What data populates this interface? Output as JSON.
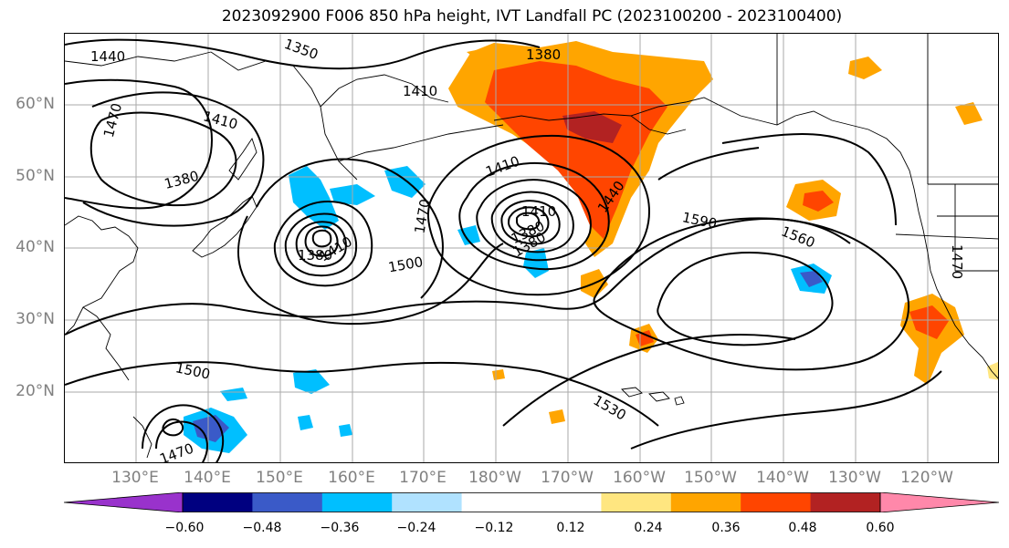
{
  "title": "2023092900 F006 850 hPa height, IVT Landfall PC (2023100200 - 2023100400)",
  "map": {
    "projection": "PlateCarree",
    "lon_range_east": [
      120,
      250
    ],
    "lat_range": [
      10,
      70
    ],
    "lat_labels": [
      "60°N",
      "50°N",
      "40°N",
      "30°N",
      "20°N"
    ],
    "lon_labels": [
      "130°E",
      "140°E",
      "150°E",
      "160°E",
      "170°E",
      "180°W",
      "170°W",
      "160°W",
      "150°W",
      "140°W",
      "130°W",
      "120°W"
    ],
    "contour_labels": [
      "1440",
      "1350",
      "1380",
      "1410",
      "1470",
      "1410",
      "1380",
      "1410",
      "1380",
      "1410",
      "1500",
      "1410",
      "1470",
      "1380",
      "1380",
      "1440",
      "1590",
      "1560",
      "1470",
      "1500",
      "1530",
      "1470"
    ],
    "fill_colors": {
      "negative_strong": "#3a5ac8",
      "negative_medium": "#00bfff",
      "negative_weak": "#b0e2ff",
      "positive_weak": "#ffe680",
      "positive_medium": "#ffa500",
      "positive_strong": "#ff4500",
      "positive_very_strong": "#b22222"
    }
  },
  "colorbar": {
    "colors": [
      "#9932cc",
      "#000080",
      "#3a5ac8",
      "#00bfff",
      "#b0e2ff",
      "#ffffff",
      "#ffffff",
      "#ffe680",
      "#ffa500",
      "#ff4500",
      "#b22222",
      "#ff88aa"
    ],
    "ticks": [
      "−0.60",
      "−0.48",
      "−0.36",
      "−0.24",
      "−0.12",
      "0.12",
      "0.24",
      "0.36",
      "0.48",
      "0.60"
    ]
  }
}
